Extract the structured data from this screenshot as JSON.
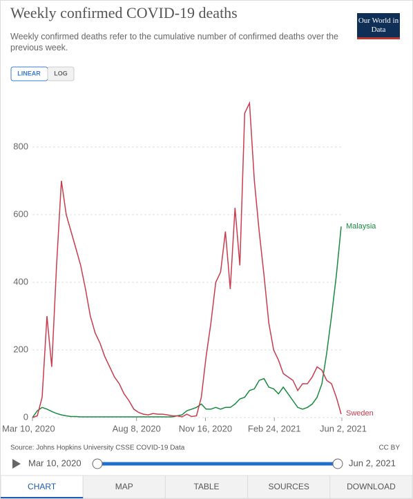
{
  "header": {
    "title": "Weekly confirmed COVID-19 deaths",
    "subtitle": "Weekly confirmed deaths refer to the cumulative number of confirmed deaths over the previous week.",
    "logo": "Our World in Data"
  },
  "controls": {
    "linear": "LINEAR",
    "log": "LOG"
  },
  "chart_data": {
    "type": "line",
    "x": [
      "2020-03-10",
      "2020-03-17",
      "2020-03-24",
      "2020-03-31",
      "2020-04-07",
      "2020-04-14",
      "2020-04-21",
      "2020-04-28",
      "2020-05-05",
      "2020-05-12",
      "2020-05-19",
      "2020-05-26",
      "2020-06-02",
      "2020-06-09",
      "2020-06-16",
      "2020-06-23",
      "2020-06-30",
      "2020-07-07",
      "2020-07-14",
      "2020-07-21",
      "2020-07-28",
      "2020-08-04",
      "2020-08-11",
      "2020-08-18",
      "2020-08-25",
      "2020-09-01",
      "2020-09-08",
      "2020-09-15",
      "2020-09-22",
      "2020-09-29",
      "2020-10-06",
      "2020-10-13",
      "2020-10-20",
      "2020-10-27",
      "2020-11-03",
      "2020-11-10",
      "2020-11-17",
      "2020-11-24",
      "2020-12-01",
      "2020-12-08",
      "2020-12-15",
      "2020-12-22",
      "2020-12-29",
      "2021-01-05",
      "2021-01-12",
      "2021-01-19",
      "2021-01-26",
      "2021-02-02",
      "2021-02-09",
      "2021-02-16",
      "2021-02-23",
      "2021-03-02",
      "2021-03-09",
      "2021-03-16",
      "2021-03-23",
      "2021-03-30",
      "2021-04-06",
      "2021-04-13",
      "2021-04-20",
      "2021-04-27",
      "2021-05-04",
      "2021-05-11",
      "2021-05-18",
      "2021-05-25",
      "2021-06-01"
    ],
    "series": [
      {
        "name": "Malaysia",
        "color": "#188a3e",
        "values": [
          0,
          20,
          30,
          25,
          18,
          12,
          8,
          5,
          3,
          3,
          2,
          2,
          2,
          2,
          2,
          2,
          2,
          2,
          2,
          2,
          2,
          2,
          2,
          2,
          2,
          2,
          2,
          2,
          2,
          2,
          5,
          8,
          20,
          25,
          30,
          40,
          25,
          25,
          30,
          25,
          30,
          30,
          40,
          55,
          60,
          80,
          85,
          110,
          115,
          90,
          85,
          70,
          90,
          70,
          50,
          30,
          25,
          30,
          40,
          60,
          100,
          190,
          300,
          420,
          565
        ]
      },
      {
        "name": "Sweden",
        "color": "#c93b4f",
        "values": [
          0,
          5,
          60,
          300,
          150,
          450,
          700,
          600,
          550,
          500,
          450,
          380,
          300,
          250,
          220,
          180,
          150,
          120,
          100,
          70,
          50,
          25,
          15,
          10,
          8,
          12,
          10,
          10,
          8,
          5,
          5,
          2,
          10,
          3,
          5,
          60,
          180,
          280,
          400,
          430,
          550,
          380,
          620,
          450,
          900,
          930,
          700,
          550,
          420,
          280,
          200,
          170,
          130,
          120,
          110,
          80,
          100,
          100,
          120,
          150,
          140,
          110,
          100,
          60,
          10
        ]
      }
    ],
    "xlim": [
      "2020-03-10",
      "2021-06-02"
    ],
    "xticks": [
      {
        "value": "2020-03-10",
        "label": "Mar 10, 2020"
      },
      {
        "value": "2020-08-08",
        "label": "Aug 8, 2020"
      },
      {
        "value": "2020-11-16",
        "label": "Nov 16, 2020"
      },
      {
        "value": "2021-02-24",
        "label": "Feb 24, 2021"
      },
      {
        "value": "2021-06-02",
        "label": "Jun 2, 2021"
      }
    ],
    "ylim": [
      0,
      1000
    ],
    "yticks": [
      0,
      200,
      400,
      600,
      800
    ],
    "grid": true
  },
  "footer": {
    "source": "Source: Johns Hopkins University CSSE COVID-19 Data",
    "license": "CC BY"
  },
  "timeline": {
    "start": "Mar 10, 2020",
    "end": "Jun 2, 2021"
  },
  "tabs": [
    "CHART",
    "MAP",
    "TABLE",
    "SOURCES",
    "DOWNLOAD"
  ]
}
